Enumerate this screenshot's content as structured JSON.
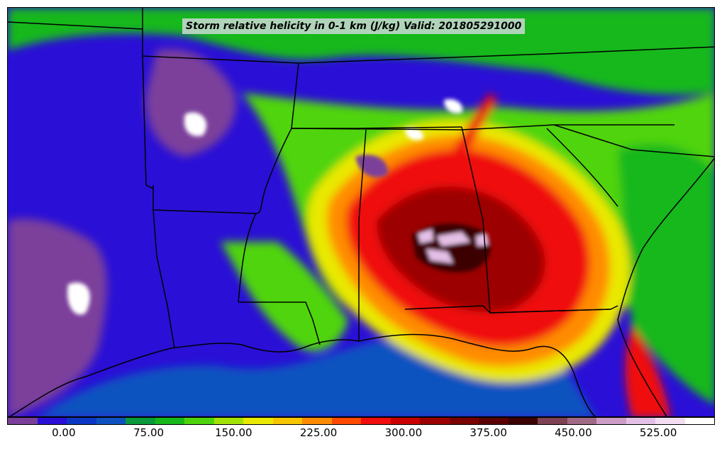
{
  "title": "Storm relative helicity in 0-1 km (J/kg) Valid: 201805291000",
  "colorbar": {
    "colors": [
      "#7b3f9b",
      "#2a0fd6",
      "#0c37c4",
      "#0e52c0",
      "#0a9a3c",
      "#18b81a",
      "#4fd40c",
      "#a3e206",
      "#e9e800",
      "#f6c500",
      "#ff8c00",
      "#ff4a00",
      "#f00e0e",
      "#c80000",
      "#9c0000",
      "#7a0000",
      "#5a0000",
      "#3c0000",
      "#7e4252",
      "#a06a86",
      "#cc9cc6",
      "#e4bfe6",
      "#f2ddf3",
      "#ffffff"
    ],
    "tick_labels": [
      "0.00",
      "75.00",
      "150.00",
      "225.00",
      "300.00",
      "375.00",
      "450.00",
      "525.00"
    ],
    "tick_values": [
      0,
      75,
      150,
      225,
      300,
      375,
      450,
      525
    ],
    "range": [
      -50,
      575
    ]
  },
  "map": {
    "background_color": "#2a0fd6",
    "ocean_color": "#0e52c0"
  }
}
